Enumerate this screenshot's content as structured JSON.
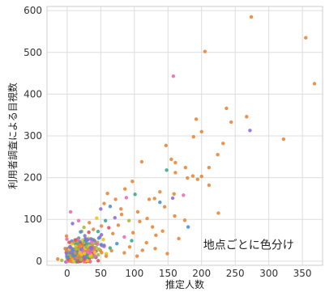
{
  "chart_data": {
    "type": "scatter",
    "title": "",
    "xlabel": "推定人数",
    "ylabel": "利用者調査による目視数",
    "xlim": [
      -30,
      380
    ],
    "ylim": [
      -10,
      610
    ],
    "xticks": [
      0,
      50,
      100,
      150,
      200,
      250,
      300,
      350
    ],
    "yticks": [
      0,
      100,
      200,
      300,
      400,
      500,
      600
    ],
    "grid": true,
    "annotation": "地点ごとに色分け",
    "colors": [
      "#e8873a",
      "#4a90d9",
      "#3aaa8c",
      "#8e6fd6",
      "#e86fb4",
      "#a4bb38",
      "#f0c419",
      "#d95555"
    ],
    "points": [
      {
        "x": 274,
        "y": 585,
        "c": 0
      },
      {
        "x": 355,
        "y": 535,
        "c": 0
      },
      {
        "x": 368,
        "y": 425,
        "c": 0
      },
      {
        "x": 205,
        "y": 502,
        "c": 0
      },
      {
        "x": 158,
        "y": 443,
        "c": 4
      },
      {
        "x": 237,
        "y": 366,
        "c": 0
      },
      {
        "x": 267,
        "y": 346,
        "c": 0
      },
      {
        "x": 192,
        "y": 340,
        "c": 0
      },
      {
        "x": 244,
        "y": 333,
        "c": 0
      },
      {
        "x": 272,
        "y": 313,
        "c": 3
      },
      {
        "x": 200,
        "y": 310,
        "c": 0
      },
      {
        "x": 188,
        "y": 298,
        "c": 0
      },
      {
        "x": 232,
        "y": 282,
        "c": 0
      },
      {
        "x": 322,
        "y": 292,
        "c": 0
      },
      {
        "x": 147,
        "y": 277,
        "c": 0
      },
      {
        "x": 224,
        "y": 255,
        "c": 0
      },
      {
        "x": 155,
        "y": 244,
        "c": 0
      },
      {
        "x": 161,
        "y": 236,
        "c": 0
      },
      {
        "x": 111,
        "y": 238,
        "c": 0
      },
      {
        "x": 176,
        "y": 224,
        "c": 0
      },
      {
        "x": 211,
        "y": 224,
        "c": 0
      },
      {
        "x": 148,
        "y": 218,
        "c": 2
      },
      {
        "x": 161,
        "y": 212,
        "c": 0
      },
      {
        "x": 187,
        "y": 204,
        "c": 0
      },
      {
        "x": 194,
        "y": 196,
        "c": 0
      },
      {
        "x": 200,
        "y": 203,
        "c": 0
      },
      {
        "x": 179,
        "y": 199,
        "c": 0
      },
      {
        "x": 225,
        "y": 115,
        "c": 0
      },
      {
        "x": 180,
        "y": 82,
        "c": 1
      },
      {
        "x": 211,
        "y": 182,
        "c": 0
      },
      {
        "x": 173,
        "y": 158,
        "c": 4
      },
      {
        "x": 175,
        "y": 98,
        "c": 0
      },
      {
        "x": 159,
        "y": 161,
        "c": 0
      },
      {
        "x": 157,
        "y": 151,
        "c": 3
      },
      {
        "x": 138,
        "y": 166,
        "c": 0
      },
      {
        "x": 145,
        "y": 130,
        "c": 0
      },
      {
        "x": 130,
        "y": 150,
        "c": 0
      },
      {
        "x": 122,
        "y": 148,
        "c": 0
      },
      {
        "x": 138,
        "y": 141,
        "c": 1
      },
      {
        "x": 97,
        "y": 191,
        "c": 0
      },
      {
        "x": 86,
        "y": 173,
        "c": 0
      },
      {
        "x": 101,
        "y": 160,
        "c": 2
      },
      {
        "x": 88,
        "y": 152,
        "c": 4
      },
      {
        "x": 60,
        "y": 162,
        "c": 0
      },
      {
        "x": 72,
        "y": 148,
        "c": 0
      },
      {
        "x": 55,
        "y": 138,
        "c": 0
      },
      {
        "x": 64,
        "y": 131,
        "c": 1
      },
      {
        "x": 80,
        "y": 125,
        "c": 0
      },
      {
        "x": 50,
        "y": 125,
        "c": 3
      },
      {
        "x": 81,
        "y": 112,
        "c": 0
      },
      {
        "x": 105,
        "y": 118,
        "c": 0
      },
      {
        "x": 119,
        "y": 102,
        "c": 0
      },
      {
        "x": 108,
        "y": 95,
        "c": 0
      },
      {
        "x": 92,
        "y": 97,
        "c": 5
      },
      {
        "x": 127,
        "y": 82,
        "c": 0
      },
      {
        "x": 142,
        "y": 72,
        "c": 0
      },
      {
        "x": 132,
        "y": 62,
        "c": 0
      },
      {
        "x": 160,
        "y": 108,
        "c": 0
      },
      {
        "x": 166,
        "y": 54,
        "c": 0
      },
      {
        "x": 118,
        "y": 44,
        "c": 0
      },
      {
        "x": 131,
        "y": 30,
        "c": 0
      },
      {
        "x": 112,
        "y": 26,
        "c": 0
      },
      {
        "x": 98,
        "y": 68,
        "c": 0
      },
      {
        "x": 96,
        "y": 49,
        "c": 2
      },
      {
        "x": 85,
        "y": 58,
        "c": 4
      },
      {
        "x": 76,
        "y": 86,
        "c": 0
      },
      {
        "x": 71,
        "y": 104,
        "c": 3
      },
      {
        "x": 68,
        "y": 66,
        "c": 0
      },
      {
        "x": 74,
        "y": 42,
        "c": 1
      },
      {
        "x": 93,
        "y": 34,
        "c": 0
      },
      {
        "x": 85,
        "y": 20,
        "c": 0
      },
      {
        "x": 62,
        "y": 80,
        "c": 7
      },
      {
        "x": 57,
        "y": 97,
        "c": 2
      },
      {
        "x": 66,
        "y": 25,
        "c": 0
      },
      {
        "x": 58,
        "y": 12,
        "c": 0
      },
      {
        "x": 104,
        "y": 12,
        "c": 0
      },
      {
        "x": 149,
        "y": 18,
        "c": 0
      },
      {
        "x": 5,
        "y": 118,
        "c": 4
      },
      {
        "x": 8,
        "y": 90,
        "c": 3
      },
      {
        "x": 17,
        "y": 97,
        "c": 4
      },
      {
        "x": 25,
        "y": 81,
        "c": 5
      },
      {
        "x": 39,
        "y": 76,
        "c": 0
      },
      {
        "x": 46,
        "y": 71,
        "c": 2
      },
      {
        "x": 51,
        "y": 84,
        "c": 0
      },
      {
        "x": 44,
        "y": 103,
        "c": 6
      },
      {
        "x": 33,
        "y": 92,
        "c": 0
      },
      {
        "x": 20,
        "y": 70,
        "c": 1
      },
      {
        "x": -1,
        "y": 60,
        "c": 0
      },
      {
        "x": 3,
        "y": 45,
        "c": 7
      },
      {
        "x": -3,
        "y": 30,
        "c": 0
      },
      {
        "x": -14,
        "y": 5,
        "c": 0
      },
      {
        "x": -8,
        "y": 2,
        "c": 5
      },
      {
        "x": 47,
        "y": 55,
        "c": 1
      }
    ],
    "cluster": {
      "x_mean": 20,
      "y_mean": 22,
      "x_sd": 14,
      "y_sd": 16,
      "count": 460
    }
  }
}
